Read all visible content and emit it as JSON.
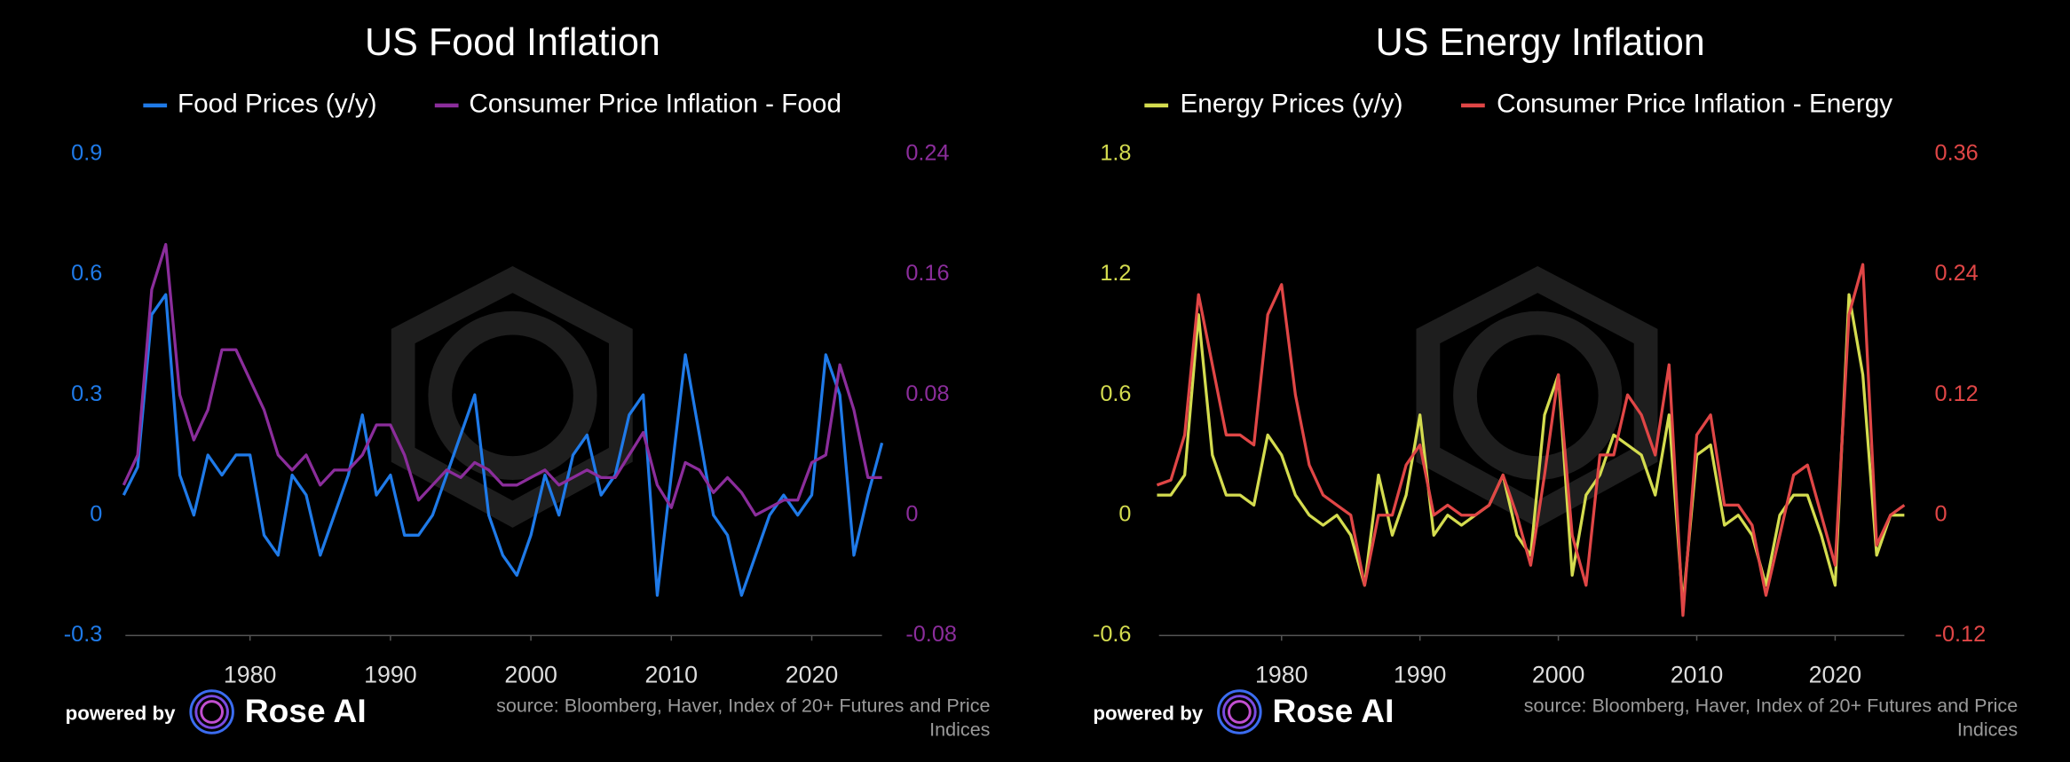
{
  "chart_data": [
    {
      "type": "line",
      "title": "US Food Inflation",
      "x": [
        1971,
        1972,
        1973,
        1974,
        1975,
        1976,
        1977,
        1978,
        1979,
        1980,
        1981,
        1982,
        1983,
        1984,
        1985,
        1986,
        1987,
        1988,
        1989,
        1990,
        1991,
        1992,
        1993,
        1994,
        1995,
        1996,
        1997,
        1998,
        1999,
        2000,
        2001,
        2002,
        2003,
        2004,
        2005,
        2006,
        2007,
        2008,
        2009,
        2010,
        2011,
        2012,
        2013,
        2014,
        2015,
        2016,
        2017,
        2018,
        2019,
        2020,
        2021,
        2022,
        2023,
        2024,
        2025
      ],
      "series": [
        {
          "name": "Food Prices (y/y)",
          "color": "#1f7ae8",
          "values": [
            0.05,
            0.12,
            0.5,
            0.55,
            0.1,
            0.0,
            0.15,
            0.1,
            0.15,
            0.15,
            -0.05,
            -0.1,
            0.1,
            0.05,
            -0.1,
            0.0,
            0.1,
            0.25,
            0.05,
            0.1,
            -0.05,
            -0.05,
            0.0,
            0.1,
            0.2,
            0.3,
            0.0,
            -0.1,
            -0.15,
            -0.05,
            0.1,
            0.0,
            0.15,
            0.2,
            0.05,
            0.1,
            0.25,
            0.3,
            -0.2,
            0.1,
            0.4,
            0.2,
            0.0,
            -0.05,
            -0.2,
            -0.1,
            0.0,
            0.05,
            0.0,
            0.05,
            0.4,
            0.3,
            -0.1,
            0.05,
            0.18
          ]
        },
        {
          "name": "Consumer Price Inflation - Food",
          "color": "#8b2d9b",
          "axis": "y2",
          "values": [
            0.02,
            0.04,
            0.15,
            0.18,
            0.08,
            0.05,
            0.07,
            0.11,
            0.11,
            0.09,
            0.07,
            0.04,
            0.03,
            0.04,
            0.02,
            0.03,
            0.03,
            0.04,
            0.06,
            0.06,
            0.04,
            0.01,
            0.02,
            0.03,
            0.025,
            0.035,
            0.03,
            0.02,
            0.02,
            0.025,
            0.03,
            0.02,
            0.025,
            0.03,
            0.025,
            0.025,
            0.04,
            0.055,
            0.02,
            0.005,
            0.035,
            0.03,
            0.015,
            0.025,
            0.015,
            0.0,
            0.005,
            0.01,
            0.01,
            0.035,
            0.04,
            0.1,
            0.07,
            0.025,
            0.025
          ]
        }
      ],
      "xlim": [
        1970,
        2025
      ],
      "xticks": [
        1980,
        1990,
        2000,
        2010,
        2020
      ],
      "ylim": [
        -0.3,
        0.9
      ],
      "yticks": [
        -0.3,
        0,
        0.3,
        0.6,
        0.9
      ],
      "y2lim": [
        -0.08,
        0.24
      ],
      "y2ticks": [
        -0.08,
        0,
        0.08,
        0.16,
        0.24
      ]
    },
    {
      "type": "line",
      "title": "US Energy Inflation",
      "x": [
        1971,
        1972,
        1973,
        1974,
        1975,
        1976,
        1977,
        1978,
        1979,
        1980,
        1981,
        1982,
        1983,
        1984,
        1985,
        1986,
        1987,
        1988,
        1989,
        1990,
        1991,
        1992,
        1993,
        1994,
        1995,
        1996,
        1997,
        1998,
        1999,
        2000,
        2001,
        2002,
        2003,
        2004,
        2005,
        2006,
        2007,
        2008,
        2009,
        2010,
        2011,
        2012,
        2013,
        2014,
        2015,
        2016,
        2017,
        2018,
        2019,
        2020,
        2021,
        2022,
        2023,
        2024,
        2025
      ],
      "series": [
        {
          "name": "Energy Prices (y/y)",
          "color": "#d4dc4f",
          "values": [
            0.1,
            0.1,
            0.2,
            1.0,
            0.3,
            0.1,
            0.1,
            0.05,
            0.4,
            0.3,
            0.1,
            0.0,
            -0.05,
            0.0,
            -0.1,
            -0.35,
            0.2,
            -0.1,
            0.1,
            0.5,
            -0.1,
            0.0,
            -0.05,
            0.0,
            0.05,
            0.2,
            -0.1,
            -0.2,
            0.5,
            0.7,
            -0.3,
            0.1,
            0.2,
            0.4,
            0.35,
            0.3,
            0.1,
            0.5,
            -0.45,
            0.3,
            0.35,
            -0.05,
            0.0,
            -0.1,
            -0.35,
            0.0,
            0.1,
            0.1,
            -0.1,
            -0.35,
            1.1,
            0.7,
            -0.2,
            0.0,
            0.0
          ]
        },
        {
          "name": "Consumer Price Inflation - Energy",
          "color": "#e04646",
          "axis": "y2",
          "values": [
            0.03,
            0.035,
            0.08,
            0.22,
            0.15,
            0.08,
            0.08,
            0.07,
            0.2,
            0.23,
            0.12,
            0.05,
            0.02,
            0.01,
            0.0,
            -0.07,
            0.0,
            0.0,
            0.05,
            0.07,
            0.0,
            0.01,
            0.0,
            0.0,
            0.01,
            0.04,
            0.0,
            -0.05,
            0.04,
            0.14,
            -0.02,
            -0.07,
            0.06,
            0.06,
            0.12,
            0.1,
            0.06,
            0.15,
            -0.1,
            0.08,
            0.1,
            0.01,
            0.01,
            -0.01,
            -0.08,
            -0.02,
            0.04,
            0.05,
            0.0,
            -0.05,
            0.2,
            0.25,
            -0.03,
            0.0,
            0.01
          ]
        }
      ],
      "xlim": [
        1970,
        2025
      ],
      "xticks": [
        1980,
        1990,
        2000,
        2010,
        2020
      ],
      "ylim": [
        -0.6,
        1.8
      ],
      "yticks": [
        -0.6,
        0,
        0.6,
        1.2,
        1.8
      ],
      "y2lim": [
        -0.12,
        0.36
      ],
      "y2ticks": [
        -0.12,
        0,
        0.12,
        0.24,
        0.36
      ]
    }
  ],
  "footer": {
    "powered_by": "powered by",
    "brand": "Rose AI",
    "source": "source: Bloomberg, Haver, Index of 20+ Futures and Price Indices"
  }
}
